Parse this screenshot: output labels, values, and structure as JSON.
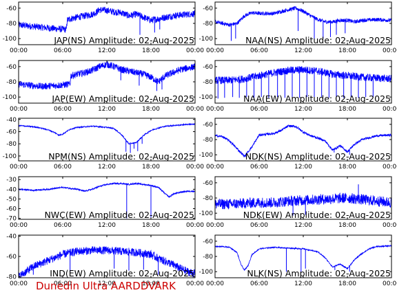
{
  "footer": {
    "text": "Dunedin Ultra AARDDVARK",
    "color": "#cc0000"
  },
  "colors": {
    "trace": "#0000ff",
    "axis": "#000000",
    "background": "#ffffff"
  },
  "chart_data": [
    {
      "type": "line",
      "title": "JAP(NS) Amplitude: 02-Aug-2025",
      "x_ticks": [
        "00:00",
        "06:00",
        "12:00",
        "18:00",
        "00:00"
      ],
      "x_range_hours": [
        0,
        24
      ],
      "y_ticks": [
        -100,
        -80,
        -60
      ],
      "ylim": [
        -108,
        -52
      ],
      "grid": false,
      "series": [
        {
          "x": [
            0,
            3,
            5,
            6.5,
            6.6,
            7,
            8,
            9,
            10,
            10.5,
            11,
            12,
            13,
            14,
            15,
            16,
            17,
            18,
            19,
            20,
            21,
            22,
            23,
            24
          ],
          "y": [
            -82,
            -85,
            -87,
            -88,
            -76,
            -74,
            -72,
            -70,
            -68,
            -66,
            -62,
            -63,
            -65,
            -66,
            -70,
            -68,
            -72,
            -76,
            -74,
            -72,
            -70,
            -69,
            -68,
            -67
          ],
          "noise": 9,
          "spikes": [
            [
              16.5,
              -95
            ],
            [
              18.5,
              -92
            ],
            [
              19.2,
              -88
            ]
          ]
        }
      ]
    },
    {
      "type": "line",
      "title": "NAA(NS) Amplitude: 02-Aug-2025",
      "x_ticks": [
        "00:00",
        "06:00",
        "12:00",
        "18:00",
        "00:00"
      ],
      "x_range_hours": [
        0,
        24
      ],
      "y_ticks": [
        -100,
        -80,
        -60
      ],
      "ylim": [
        -108,
        -52
      ],
      "grid": false,
      "series": [
        {
          "x": [
            0,
            1,
            2,
            3,
            4,
            5,
            6,
            8,
            10,
            11,
            12,
            13,
            14,
            15,
            16,
            17,
            18,
            19,
            20,
            22,
            24
          ],
          "y": [
            -78,
            -80,
            -82,
            -80,
            -70,
            -66,
            -67,
            -67,
            -62,
            -60,
            -64,
            -70,
            -75,
            -78,
            -78,
            -76,
            -76,
            -78,
            -76,
            -75,
            -76
          ],
          "noise": 5,
          "spikes": [
            [
              2.2,
              -103
            ],
            [
              2.8,
              -100
            ],
            [
              11.3,
              -90
            ],
            [
              13.5,
              -100
            ],
            [
              14.7,
              -100
            ],
            [
              15.7,
              -98
            ],
            [
              16.5,
              -95
            ],
            [
              17.7,
              -93
            ]
          ]
        }
      ]
    },
    {
      "type": "line",
      "title": "JAP(EW) Amplitude: 02-Aug-2025",
      "x_ticks": [
        "00:00",
        "06:00",
        "12:00",
        "18:00",
        "00:00"
      ],
      "x_range_hours": [
        0,
        24
      ],
      "y_ticks": [
        -100,
        -80,
        -60
      ],
      "ylim": [
        -108,
        -52
      ],
      "grid": false,
      "series": [
        {
          "x": [
            0,
            3,
            5,
            6,
            7,
            7.1,
            8,
            9,
            10,
            11,
            12,
            13,
            14,
            15,
            16,
            17,
            18,
            19,
            20,
            22,
            24
          ],
          "y": [
            -83,
            -86,
            -85,
            -84,
            -83,
            -72,
            -70,
            -68,
            -65,
            -60,
            -57,
            -60,
            -64,
            -66,
            -68,
            -70,
            -74,
            -80,
            -72,
            -64,
            -60
          ],
          "noise": 9,
          "spikes": [
            [
              13.9,
              -78
            ],
            [
              16.4,
              -85
            ],
            [
              18.8,
              -92
            ],
            [
              19.5,
              -90
            ]
          ]
        }
      ]
    },
    {
      "type": "line",
      "title": "NAA(EW) Amplitude: 02-Aug-2025",
      "x_ticks": [
        "00:00",
        "06:00",
        "12:00",
        "18:00",
        "00:00"
      ],
      "x_range_hours": [
        0,
        24
      ],
      "y_ticks": [
        -100,
        -80,
        -60
      ],
      "ylim": [
        -108,
        -52
      ],
      "grid": false,
      "series": [
        {
          "x": [
            0,
            2,
            4,
            6,
            8,
            10,
            12,
            14,
            16,
            18,
            20,
            22,
            24
          ],
          "y": [
            -78,
            -78,
            -76,
            -72,
            -68,
            -65,
            -64,
            -66,
            -70,
            -72,
            -74,
            -75,
            -76
          ],
          "noise": 10,
          "spikes": [
            [
              0.4,
              -102
            ],
            [
              1.3,
              -101
            ],
            [
              2.4,
              -100
            ],
            [
              3.3,
              -101
            ],
            [
              4.3,
              -100
            ],
            [
              5.3,
              -102
            ],
            [
              6.3,
              -100
            ],
            [
              7.3,
              -101
            ],
            [
              8.5,
              -100
            ],
            [
              9.5,
              -101
            ],
            [
              10.5,
              -100
            ],
            [
              11.5,
              -101
            ],
            [
              12.5,
              -100
            ],
            [
              13.5,
              -102
            ],
            [
              14.5,
              -100
            ],
            [
              15.5,
              -101
            ],
            [
              16.5,
              -100
            ],
            [
              17.5,
              -101
            ],
            [
              18.5,
              -100
            ],
            [
              19.5,
              -101
            ],
            [
              20.5,
              -100
            ],
            [
              21.5,
              -100
            ]
          ]
        }
      ]
    },
    {
      "type": "line",
      "title": "NPM(NS) Amplitude: 02-Aug-2025",
      "x_ticks": [
        "00:00",
        "06:00",
        "12:00",
        "18:00",
        "00:00"
      ],
      "x_range_hours": [
        0,
        24
      ],
      "y_ticks": [
        -100,
        -80,
        -60,
        -40
      ],
      "ylim": [
        -108,
        -38
      ],
      "grid": false,
      "series": [
        {
          "x": [
            0,
            2,
            3,
            4,
            5,
            5.5,
            6,
            7,
            8,
            9,
            10,
            11,
            12,
            13,
            14,
            15,
            16,
            17,
            18,
            19,
            20,
            21,
            22,
            23,
            24
          ],
          "y": [
            -50,
            -52,
            -54,
            -57,
            -62,
            -66,
            -64,
            -56,
            -53,
            -52,
            -51,
            -52,
            -53,
            -55,
            -65,
            -80,
            -78,
            -66,
            -58,
            -54,
            -51,
            -50,
            -49,
            -48,
            -48
          ],
          "noise": 2,
          "spikes": [
            [
              14.6,
              -93
            ],
            [
              15.2,
              -95
            ],
            [
              15.7,
              -88
            ],
            [
              16.2,
              -92
            ],
            [
              16.8,
              -80
            ]
          ]
        }
      ]
    },
    {
      "type": "line",
      "title": "NDK(NS) Amplitude: 02-Aug-2025",
      "x_ticks": [
        "00:00",
        "06:00",
        "12:00",
        "18:00",
        "00:00"
      ],
      "x_range_hours": [
        0,
        24
      ],
      "y_ticks": [
        -100,
        -80,
        -60
      ],
      "ylim": [
        -108,
        -52
      ],
      "grid": false,
      "series": [
        {
          "x": [
            0,
            1,
            2,
            3,
            4,
            5,
            6,
            8,
            9,
            10,
            11,
            12,
            13,
            14,
            15,
            16,
            17,
            18,
            19,
            20,
            22,
            24
          ],
          "y": [
            -75,
            -76,
            -82,
            -92,
            -102,
            -90,
            -74,
            -72,
            -68,
            -62,
            -63,
            -70,
            -75,
            -78,
            -82,
            -94,
            -88,
            -96,
            -86,
            -80,
            -75,
            -74
          ],
          "noise": 3,
          "spikes": [
            [
              4.2,
              -103
            ],
            [
              16.2,
              -97
            ],
            [
              18.3,
              -100
            ]
          ]
        }
      ]
    },
    {
      "type": "line",
      "title": "NWC(EW) Amplitude: 02-Aug-2025",
      "x_ticks": [
        "00:00",
        "06:00",
        "12:00",
        "18:00",
        "00:00"
      ],
      "x_range_hours": [
        0,
        24
      ],
      "y_ticks": [
        -70,
        -60,
        -50,
        -40,
        -30
      ],
      "ylim": [
        -71,
        -27
      ],
      "grid": false,
      "series": [
        {
          "x": [
            0,
            2,
            4,
            6,
            8,
            9,
            10,
            11,
            12,
            13,
            14,
            15,
            16,
            17,
            18,
            19,
            20,
            20.5,
            21,
            22,
            23,
            24
          ],
          "y": [
            -40,
            -41,
            -40,
            -38,
            -40,
            -42,
            -40,
            -37,
            -35,
            -34,
            -34,
            -35,
            -34,
            -35,
            -36,
            -38,
            -45,
            -48,
            -45,
            -43,
            -42,
            -42
          ],
          "noise": 1.5,
          "spikes": [
            [
              14.7,
              -70
            ],
            [
              18,
              -70
            ]
          ]
        }
      ]
    },
    {
      "type": "line",
      "title": "NDK(EW) Amplitude: 02-Aug-2025",
      "x_ticks": [
        "00:00",
        "06:00",
        "12:00",
        "18:00",
        "00:00"
      ],
      "x_range_hours": [
        0,
        24
      ],
      "y_ticks": [
        -100,
        -80,
        -60
      ],
      "ylim": [
        -108,
        -52
      ],
      "grid": false,
      "series": [
        {
          "x": [
            0,
            2,
            4,
            6,
            8,
            10,
            12,
            14,
            16,
            18,
            20,
            22,
            24
          ],
          "y": [
            -88,
            -88,
            -87,
            -86,
            -86,
            -84,
            -83,
            -82,
            -81,
            -80,
            -82,
            -84,
            -86
          ],
          "noise": 14,
          "spikes": [
            [
              10.6,
              -103
            ],
            [
              12.3,
              -102
            ],
            [
              19.5,
              -62
            ]
          ]
        }
      ]
    },
    {
      "type": "line",
      "title": "IND(EW) Amplitude: 02-Aug-2025",
      "x_ticks": [
        "00:00",
        "06:00",
        "12:00",
        "18:00",
        "00:00"
      ],
      "x_range_hours": [
        0,
        24
      ],
      "y_ticks": [
        -80,
        -60,
        -40
      ],
      "ylim": [
        -81,
        -39
      ],
      "grid": false,
      "series": [
        {
          "x": [
            0,
            1,
            2,
            3,
            4,
            5,
            6,
            8,
            10,
            12,
            14,
            16,
            18,
            19,
            20,
            21,
            22,
            23,
            24
          ],
          "y": [
            -80,
            -75,
            -70,
            -67,
            -64,
            -61,
            -58,
            -55,
            -54,
            -54,
            -55,
            -56,
            -58,
            -62,
            -65,
            -68,
            -72,
            -75,
            -77
          ],
          "noise": 8,
          "spikes": [
            [
              2,
              -78
            ],
            [
              7,
              -75
            ],
            [
              13,
              -72
            ],
            [
              15,
              -74
            ],
            [
              17,
              -73
            ],
            [
              19,
              -78
            ]
          ]
        }
      ]
    },
    {
      "type": "line",
      "title": "NLK(NS) Amplitude: 02-Aug-2025",
      "x_ticks": [
        "00:00",
        "06:00",
        "12:00",
        "18:00",
        "00:00"
      ],
      "x_range_hours": [
        0,
        24
      ],
      "y_ticks": [
        -100,
        -80,
        -60
      ],
      "ylim": [
        -108,
        -52
      ],
      "grid": false,
      "series": [
        {
          "x": [
            0,
            1,
            2,
            3,
            3.5,
            4,
            4.5,
            5,
            6,
            8,
            10,
            12,
            14,
            15,
            16,
            17,
            18,
            19,
            20,
            21,
            22,
            24
          ],
          "y": [
            -67,
            -67,
            -68,
            -75,
            -90,
            -98,
            -92,
            -78,
            -70,
            -68,
            -69,
            -70,
            -74,
            -82,
            -94,
            -90,
            -96,
            -84,
            -76,
            -70,
            -67,
            -66
          ],
          "noise": 1.5,
          "spikes": [
            [
              9.7,
              -100
            ],
            [
              11.7,
              -100
            ],
            [
              12.3,
              -96
            ],
            [
              16.3,
              -98
            ],
            [
              18.3,
              -100
            ]
          ]
        }
      ]
    }
  ]
}
